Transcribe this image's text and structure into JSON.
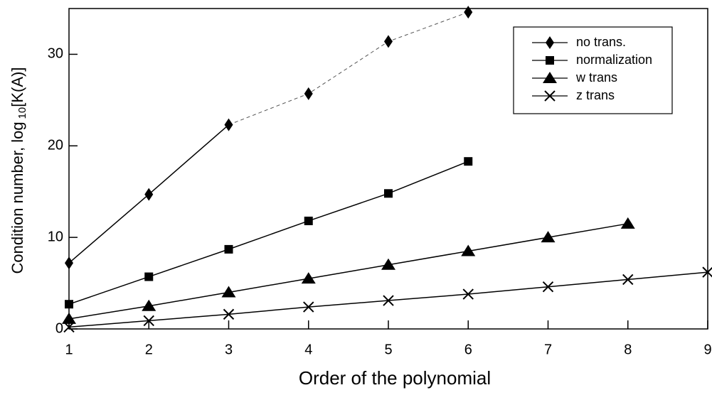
{
  "chart_data": {
    "type": "line",
    "x_label": "Order of the polynomial",
    "y_label": "Condition number, log",
    "y_label_sub": "10",
    "y_label_end": "[K(A)]",
    "xlim": [
      1,
      9
    ],
    "xticks": [
      1,
      2,
      3,
      4,
      5,
      6,
      7,
      8,
      9
    ],
    "ylim": [
      0,
      35
    ],
    "yticks": [
      0,
      10,
      20,
      30
    ],
    "legend": "top-right",
    "series": [
      {
        "name": "no trans.",
        "color": "#000000",
        "marker": "diamond",
        "dash_from_x": 3,
        "x": [
          1,
          2,
          3,
          4,
          5,
          6
        ],
        "values": [
          7.2,
          14.7,
          22.3,
          25.7,
          31.4,
          34.6
        ]
      },
      {
        "name": "normalization",
        "color": "#000000",
        "marker": "square",
        "x": [
          1,
          2,
          3,
          4,
          5,
          6
        ],
        "values": [
          2.7,
          5.7,
          8.7,
          11.8,
          14.8,
          18.3
        ]
      },
      {
        "name": "w trans",
        "color": "#000000",
        "marker": "triangle",
        "x": [
          1,
          2,
          3,
          4,
          5,
          6,
          7,
          8
        ],
        "values": [
          1.1,
          2.5,
          4.0,
          5.5,
          7.0,
          8.5,
          10.0,
          11.5
        ]
      },
      {
        "name": "z trans",
        "color": "#000000",
        "marker": "x",
        "x": [
          1,
          2,
          3,
          4,
          5,
          6,
          7,
          8,
          9
        ],
        "values": [
          0.2,
          0.9,
          1.6,
          2.4,
          3.1,
          3.8,
          4.6,
          5.4,
          6.2
        ]
      }
    ]
  }
}
